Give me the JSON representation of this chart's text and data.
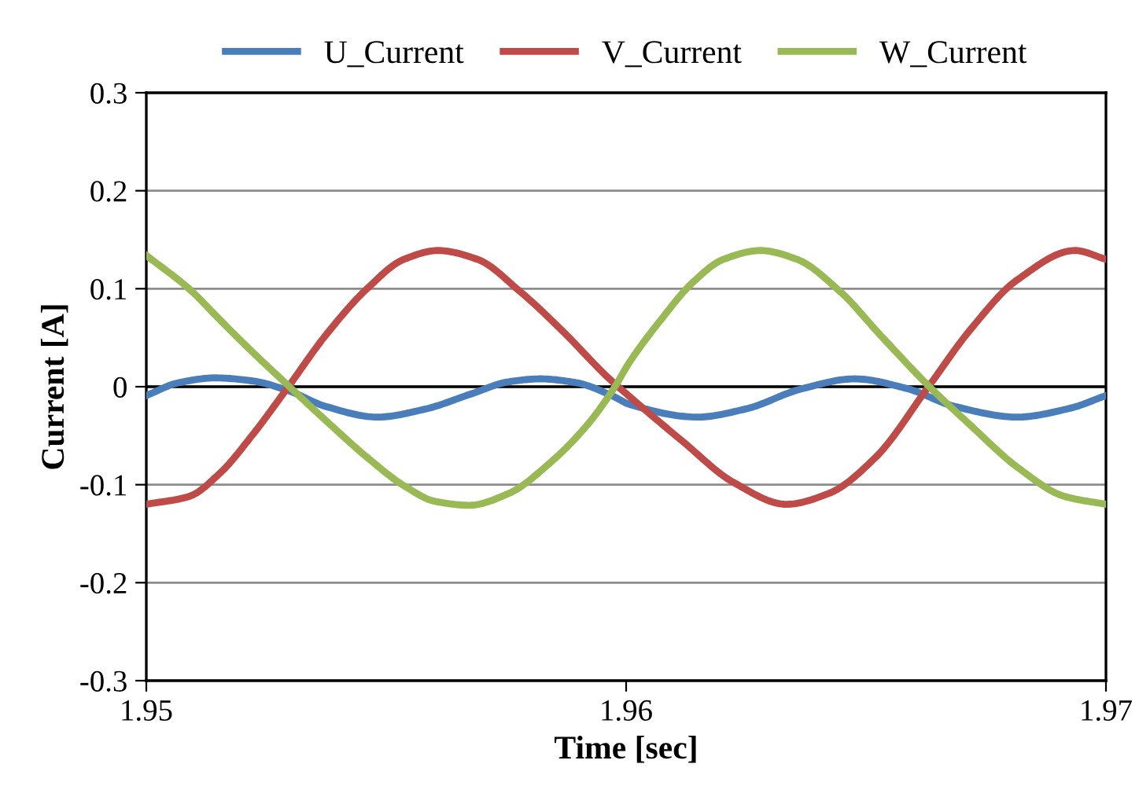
{
  "chart_data": {
    "type": "line",
    "xlabel": "Time [sec]",
    "ylabel": "Current [A]",
    "xlim": [
      1.95,
      1.97
    ],
    "xticks": [
      1.95,
      1.96,
      1.97
    ],
    "ylim": [
      -0.3,
      0.3
    ],
    "yticks": [
      -0.3,
      -0.2,
      -0.1,
      0,
      0.1,
      0.2,
      0.3
    ],
    "grid": "y",
    "legend": "top",
    "marker": "none",
    "line_style": "solid",
    "ref_lines": [
      {
        "axis": "y",
        "value": 0,
        "color": "#000000"
      }
    ],
    "series": [
      {
        "name": "U_Current",
        "color": "#4a7ebb",
        "x": [
          1.95,
          1.95067,
          1.95143,
          1.9522,
          1.95296,
          1.95373,
          1.95482,
          1.9558,
          1.95679,
          1.95755,
          1.95821,
          1.95897,
          1.95974,
          1.96007,
          1.96149,
          1.96247,
          1.96367,
          1.96476,
          1.96586,
          1.96684,
          1.96815,
          1.96925,
          1.97
        ],
        "values": [
          -0.009,
          0.004,
          0.009,
          0.006,
          -0.004,
          -0.02,
          -0.031,
          -0.023,
          -0.007,
          0.005,
          0.008,
          0.004,
          -0.01,
          -0.018,
          -0.031,
          -0.023,
          -0.002,
          0.008,
          -0.002,
          -0.02,
          -0.031,
          -0.022,
          -0.009
        ]
      },
      {
        "name": "V_Current",
        "color": "#be4b48",
        "x": [
          1.95,
          1.95089,
          1.95154,
          1.9522,
          1.95296,
          1.95373,
          1.9546,
          1.95537,
          1.95608,
          1.9569,
          1.95777,
          1.95865,
          1.95963,
          1.96007,
          1.96116,
          1.96225,
          1.96334,
          1.96422,
          1.9652,
          1.9663,
          1.96717,
          1.96815,
          1.96935,
          1.97
        ],
        "values": [
          -0.12,
          -0.112,
          -0.088,
          -0.05,
          0.0,
          0.052,
          0.1,
          0.13,
          0.139,
          0.13,
          0.098,
          0.058,
          0.009,
          -0.01,
          -0.055,
          -0.098,
          -0.12,
          -0.109,
          -0.072,
          0.0,
          0.058,
          0.109,
          0.139,
          0.13
        ]
      },
      {
        "name": "W_Current",
        "color": "#98b954",
        "x": [
          1.95,
          1.95089,
          1.95154,
          1.9522,
          1.95296,
          1.95373,
          1.9546,
          1.95537,
          1.95602,
          1.95673,
          1.95755,
          1.95843,
          1.95919,
          1.95974,
          1.96007,
          1.96072,
          1.96138,
          1.96203,
          1.9628,
          1.96356,
          1.96444,
          1.96531,
          1.9663,
          1.96717,
          1.96815,
          1.96914,
          1.97
        ],
        "values": [
          0.134,
          0.1,
          0.068,
          0.036,
          0.001,
          -0.034,
          -0.072,
          -0.101,
          -0.117,
          -0.121,
          -0.109,
          -0.077,
          -0.039,
          -0.002,
          0.025,
          0.068,
          0.106,
          0.13,
          0.139,
          0.13,
          0.098,
          0.052,
          0.001,
          -0.039,
          -0.082,
          -0.112,
          -0.12
        ]
      }
    ]
  }
}
